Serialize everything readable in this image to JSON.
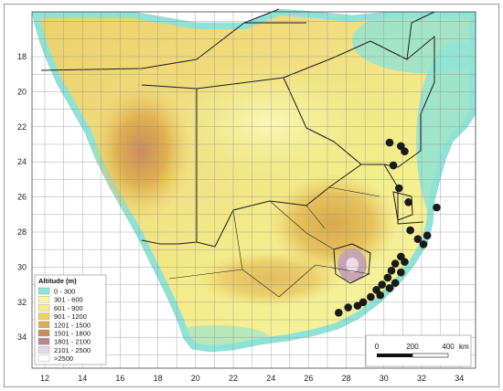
{
  "map": {
    "x_ticks": [
      "12",
      "14",
      "16",
      "18",
      "20",
      "22",
      "24",
      "26",
      "28",
      "30",
      "32",
      "34"
    ],
    "y_ticks": [
      "18",
      "20",
      "22",
      "24",
      "26",
      "28",
      "30",
      "32",
      "34"
    ]
  },
  "legend": {
    "title": "Altitude (m)",
    "items": [
      {
        "label": "0 - 300",
        "color": "#8fe3d6"
      },
      {
        "label": "301 - 600",
        "color": "#f7f7a8"
      },
      {
        "label": "601 - 900",
        "color": "#f4ec8a"
      },
      {
        "label": "901 - 1200",
        "color": "#ecd06a"
      },
      {
        "label": "1201 - 1500",
        "color": "#e0b050"
      },
      {
        "label": "1501 - 1800",
        "color": "#c88c5c"
      },
      {
        "label": "1801 - 2100",
        "color": "#b58a8a"
      },
      {
        "label": "2101 - 2500",
        "color": "#e8d6e4"
      },
      {
        "label": ">2500",
        "color": "#ffffff"
      }
    ]
  },
  "scale_bar": {
    "labels": [
      "0",
      "200",
      "400"
    ],
    "unit": "km"
  },
  "colors": {
    "ocean": "#ffffff",
    "coast_lowland": "#8fe3d6",
    "border": "#1a1a1a",
    "grid": "#8a8a8a",
    "points": "#1a1a1a"
  },
  "points": [
    {
      "lon": 30.3,
      "lat": 22.9
    },
    {
      "lon": 30.9,
      "lat": 23.1
    },
    {
      "lon": 31.1,
      "lat": 23.4
    },
    {
      "lon": 30.5,
      "lat": 24.2
    },
    {
      "lon": 30.8,
      "lat": 25.5
    },
    {
      "lon": 31.3,
      "lat": 26.3
    },
    {
      "lon": 32.8,
      "lat": 26.6
    },
    {
      "lon": 31.4,
      "lat": 27.9
    },
    {
      "lon": 31.8,
      "lat": 28.4
    },
    {
      "lon": 32.3,
      "lat": 28.2
    },
    {
      "lon": 32.1,
      "lat": 28.7
    },
    {
      "lon": 30.9,
      "lat": 29.4
    },
    {
      "lon": 31.1,
      "lat": 29.7
    },
    {
      "lon": 30.6,
      "lat": 29.8
    },
    {
      "lon": 30.4,
      "lat": 30.2
    },
    {
      "lon": 30.9,
      "lat": 30.3
    },
    {
      "lon": 30.2,
      "lat": 30.6
    },
    {
      "lon": 30.6,
      "lat": 30.9
    },
    {
      "lon": 29.9,
      "lat": 31.0
    },
    {
      "lon": 30.3,
      "lat": 31.2
    },
    {
      "lon": 29.6,
      "lat": 31.3
    },
    {
      "lon": 29.8,
      "lat": 31.6
    },
    {
      "lon": 29.3,
      "lat": 31.7
    },
    {
      "lon": 28.9,
      "lat": 32.0
    },
    {
      "lon": 28.6,
      "lat": 32.2
    },
    {
      "lon": 28.1,
      "lat": 32.3
    },
    {
      "lon": 27.6,
      "lat": 32.6
    }
  ]
}
